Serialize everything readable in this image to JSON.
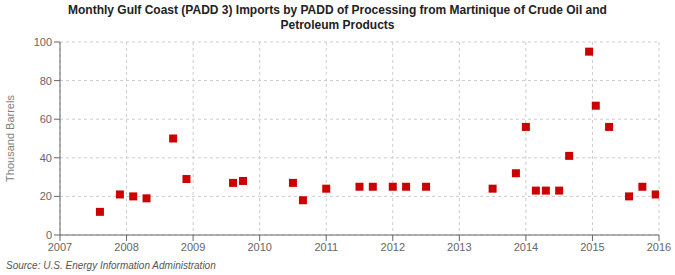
{
  "chart_data": {
    "type": "scatter",
    "title": "Monthly Gulf Coast (PADD 3) Imports by PADD of Processing from Martinique of Crude Oil and\nPetroleum Products",
    "y_label": "Thousand Barrels",
    "annotations": [
      "Source: U.S. Energy Information Administration"
    ],
    "series": [
      {
        "color": "#cc0000",
        "marker": "square",
        "x": [
          2007.6,
          2007.9,
          2008.1,
          2008.3,
          2008.7,
          2008.9,
          2009.6,
          2009.75,
          2010.5,
          2010.65,
          2011.0,
          2011.5,
          2011.7,
          2012.0,
          2012.2,
          2012.5,
          2013.5,
          2013.85,
          2014.0,
          2014.15,
          2014.3,
          2014.5,
          2014.65,
          2014.95,
          2015.05,
          2015.25,
          2015.55,
          2015.75,
          2015.95
        ],
        "values": [
          12,
          21,
          20,
          19,
          50,
          29,
          27,
          28,
          27,
          18,
          24,
          25,
          25,
          25,
          25,
          25,
          24,
          32,
          56,
          23,
          23,
          23,
          41,
          95,
          67,
          56,
          20,
          25,
          21
        ]
      }
    ],
    "xlim": [
      2007,
      2016
    ],
    "xticks": [
      2007,
      2008,
      2009,
      2010,
      2011,
      2012,
      2013,
      2014,
      2015,
      2016
    ],
    "ylim": [
      0,
      100
    ],
    "yticks": [
      0,
      20,
      40,
      60,
      80,
      100
    ],
    "grid": true
  }
}
